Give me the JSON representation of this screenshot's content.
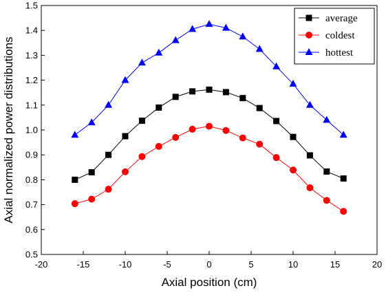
{
  "chart_data": {
    "type": "line",
    "xlabel": "Axial position (cm)",
    "ylabel": "Axial normalized power distributions",
    "xlim": [
      -20,
      20
    ],
    "ylim": [
      0.5,
      1.5
    ],
    "xticks": [
      -20,
      -15,
      -10,
      -5,
      0,
      5,
      10,
      15,
      20
    ],
    "yticks": [
      0.5,
      0.6,
      0.7,
      0.8,
      0.9,
      1.0,
      1.1,
      1.2,
      1.3,
      1.4,
      1.5
    ],
    "xtick_labels": [
      "-20",
      "-15",
      "-10",
      "-5",
      "0",
      "5",
      "10",
      "15",
      "20"
    ],
    "ytick_labels": [
      "0.5",
      "0.6",
      "0.7",
      "0.8",
      "0.9",
      "1.0",
      "1.1",
      "1.2",
      "1.3",
      "1.4",
      "1.5"
    ],
    "legend_position": "top-right",
    "x": [
      -16,
      -14,
      -12,
      -10,
      -8,
      -6,
      -4,
      -2,
      0,
      2,
      4,
      6,
      8,
      10,
      12,
      14,
      16
    ],
    "series": [
      {
        "name": "average",
        "marker": "square",
        "color": "#000000",
        "values": [
          0.8,
          0.83,
          0.9,
          0.975,
          1.037,
          1.09,
          1.133,
          1.155,
          1.162,
          1.152,
          1.128,
          1.088,
          1.036,
          0.972,
          0.898,
          0.833,
          0.805
        ]
      },
      {
        "name": "coldest",
        "marker": "circle",
        "color": "#ff0000",
        "values": [
          0.704,
          0.722,
          0.762,
          0.832,
          0.893,
          0.934,
          0.97,
          1.003,
          1.015,
          0.998,
          0.968,
          0.943,
          0.889,
          0.839,
          0.768,
          0.717,
          0.673
        ]
      },
      {
        "name": "hottest",
        "marker": "triangle",
        "color": "#0000ff",
        "values": [
          0.98,
          1.03,
          1.1,
          1.2,
          1.27,
          1.31,
          1.36,
          1.405,
          1.425,
          1.41,
          1.375,
          1.325,
          1.255,
          1.185,
          1.1,
          1.04,
          0.98
        ]
      }
    ]
  }
}
